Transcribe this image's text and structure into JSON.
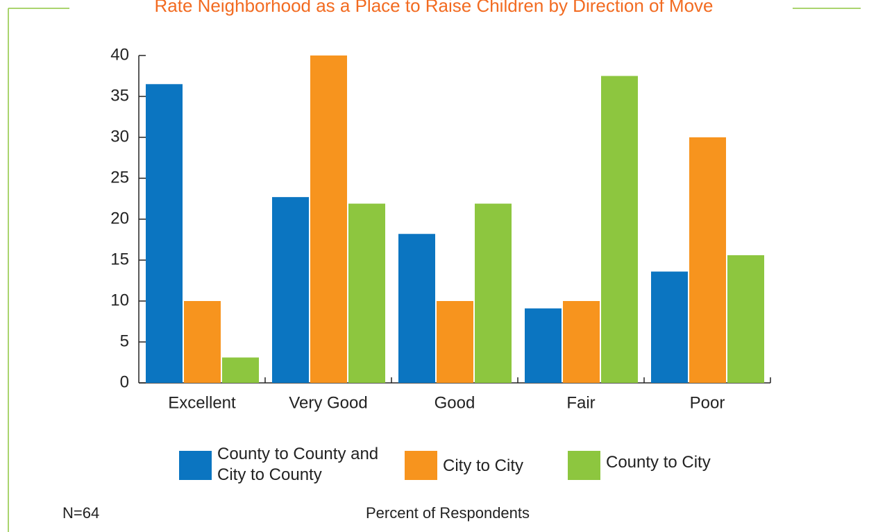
{
  "chart_data": {
    "type": "bar",
    "title": "Rate Neighborhood as a Place to Raise Children by Direction of Move",
    "categories": [
      "Excellent",
      "Very Good",
      "Good",
      "Fair",
      "Poor"
    ],
    "series": [
      {
        "name": "County to County and City to County",
        "color": "#0b75c1",
        "values": [
          36.5,
          22.7,
          18.2,
          9.1,
          13.6
        ]
      },
      {
        "name": "City to City",
        "color": "#f7941e",
        "values": [
          10,
          40,
          10,
          10,
          30
        ]
      },
      {
        "name": "County to City",
        "color": "#8dc63f",
        "values": [
          3.1,
          21.9,
          21.9,
          37.5,
          15.6
        ]
      }
    ],
    "ylim": [
      0,
      40
    ],
    "yticks": [
      0,
      5,
      10,
      15,
      20,
      25,
      30,
      35,
      40
    ],
    "note": "N=64",
    "xlabel": "Percent of Respondents"
  }
}
